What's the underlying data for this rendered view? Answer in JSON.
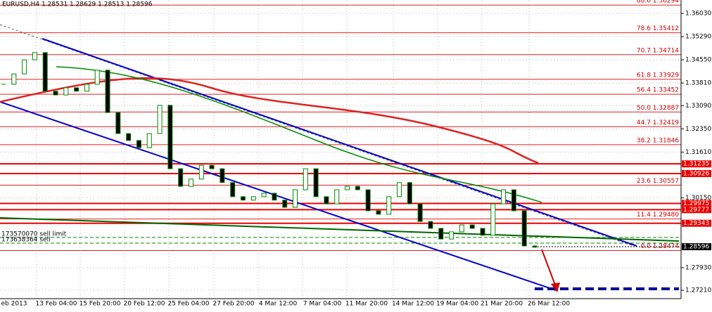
{
  "chart_data": {
    "type": "candlestick",
    "title": "EURUSD,H4  1.28531 1.28629 1.28513 1.28596",
    "ylim": [
      1.26941,
      1.36455
    ],
    "yticks": [
      {
        "value": 1.3603,
        "label": "1.36030"
      },
      {
        "value": 1.3529,
        "label": "1.35290"
      },
      {
        "value": 1.3455,
        "label": "1.34550"
      },
      {
        "value": 1.3381,
        "label": "1.33810"
      },
      {
        "value": 1.3309,
        "label": "1.33090"
      },
      {
        "value": 1.3235,
        "label": "1.32350"
      },
      {
        "value": 1.3161,
        "label": "1.31610"
      },
      {
        "value": 1.3015,
        "label": "1.30150"
      },
      {
        "value": 1.2793,
        "label": "1.27930"
      },
      {
        "value": 1.2721,
        "label": "1.27210"
      }
    ],
    "grid": true,
    "x_labels": [
      "eb 2013",
      "13 Feb 04:00",
      "15 Feb 20:00",
      "20 Feb 12:00",
      "25 Feb 04:00",
      "27 Feb 20:00",
      "4 Mar 12:00",
      "7 Mar 04:00",
      "11 Mar 20:00",
      "14 Mar 12:00",
      "19 Mar 04:00",
      "21 Mar 20:00",
      "26 Mar 12:00"
    ],
    "closes": [
      1.3377,
      1.341,
      1.3455,
      1.3478,
      1.3355,
      1.3343,
      1.3366,
      1.3355,
      1.3377,
      1.3422,
      1.3287,
      1.322,
      1.3198,
      1.3175,
      1.322,
      1.331,
      1.3108,
      1.3052,
      1.3075,
      1.3119,
      1.3108,
      1.3064,
      1.3019,
      1.3008,
      1.3019,
      1.303,
      1.3008,
      1.2985,
      1.3041,
      1.3108,
      1.3019,
      1.2996,
      1.3041,
      1.3052,
      1.3041,
      1.2974,
      1.2963,
      1.3019,
      1.3064,
      1.2996,
      1.294,
      1.2918,
      1.2884,
      1.2907,
      1.2929,
      1.2918,
      1.2896,
      1.2996,
      1.3041,
      1.2974,
      1.2862,
      1.2858
    ],
    "fib_levels": [
      {
        "value": 1.36294,
        "label": "88.6 1.36294"
      },
      {
        "value": 1.35412,
        "label": "78.6 1.35412"
      },
      {
        "value": 1.34714,
        "label": "70.7 1.34714"
      },
      {
        "value": 1.33929,
        "label": "61.8 1.33929"
      },
      {
        "value": 1.33452,
        "label": "56.4 1.33452"
      },
      {
        "value": 1.32887,
        "label": "50.0 1.32887"
      },
      {
        "value": 1.32419,
        "label": "44.7 1.32419"
      },
      {
        "value": 1.31846,
        "label": "38.2 1.31846"
      },
      {
        "value": 1.30557,
        "label": "23.6 1.30557"
      },
      {
        "value": 1.2948,
        "label": "11.4 1.29480"
      },
      {
        "value": 1.28474,
        "label": "0.0 1.28474"
      }
    ],
    "levels": [
      {
        "value": 1.31235,
        "label": "1.31235"
      },
      {
        "value": 1.30926,
        "label": "1.30926"
      },
      {
        "value": 1.29975,
        "label": "1.29975"
      },
      {
        "value": 1.29777,
        "label": "1.29777"
      },
      {
        "value": 1.29343,
        "label": "1.29343"
      }
    ],
    "current": {
      "value": 1.28596,
      "label": "1.28596"
    },
    "orders": [
      {
        "label": "173570070 sell limit",
        "price": 1.2889
      },
      {
        "label": "173638364 sell",
        "price": 1.2871
      }
    ]
  }
}
